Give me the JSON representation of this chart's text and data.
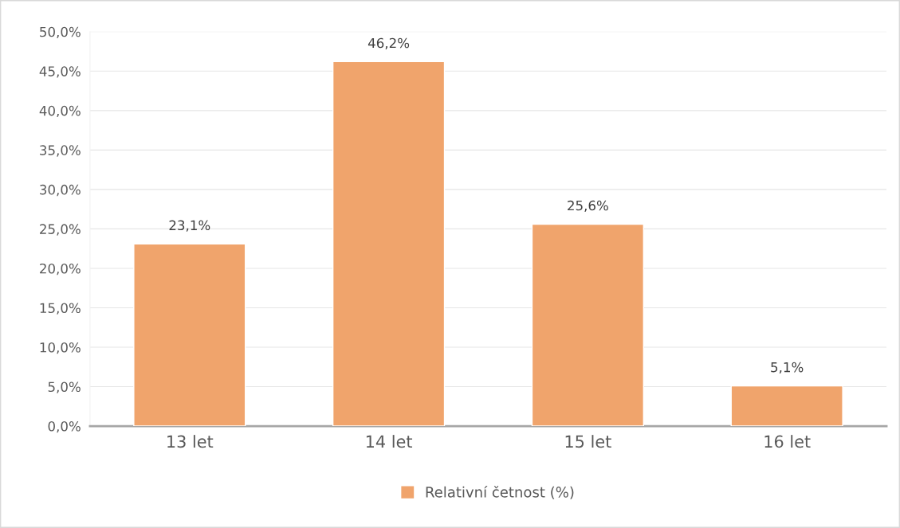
{
  "chart_data": {
    "type": "bar",
    "categories": [
      "13 let",
      "14 let",
      "15 let",
      "16 let"
    ],
    "series": [
      {
        "name": "Relativní četnost (%)",
        "color": "#f0a46c",
        "values": [
          23.1,
          46.2,
          25.6,
          5.1
        ],
        "value_labels": [
          "23,1%",
          "46,2%",
          "25,6%",
          "5,1%"
        ]
      }
    ],
    "ylim": [
      0,
      50
    ],
    "yticks": [
      {
        "value": 0,
        "label": "0,0%"
      },
      {
        "value": 5,
        "label": "5,0%"
      },
      {
        "value": 10,
        "label": "10,0%"
      },
      {
        "value": 15,
        "label": "15,0%"
      },
      {
        "value": 20,
        "label": "20,0%"
      },
      {
        "value": 25,
        "label": "25,0%"
      },
      {
        "value": 30,
        "label": "30,0%"
      },
      {
        "value": 35,
        "label": "35,0%"
      },
      {
        "value": 40,
        "label": "40,0%"
      },
      {
        "value": 45,
        "label": "45,0%"
      },
      {
        "value": 50,
        "label": "50,0%"
      }
    ],
    "grid": "y",
    "legend": "bottom"
  }
}
